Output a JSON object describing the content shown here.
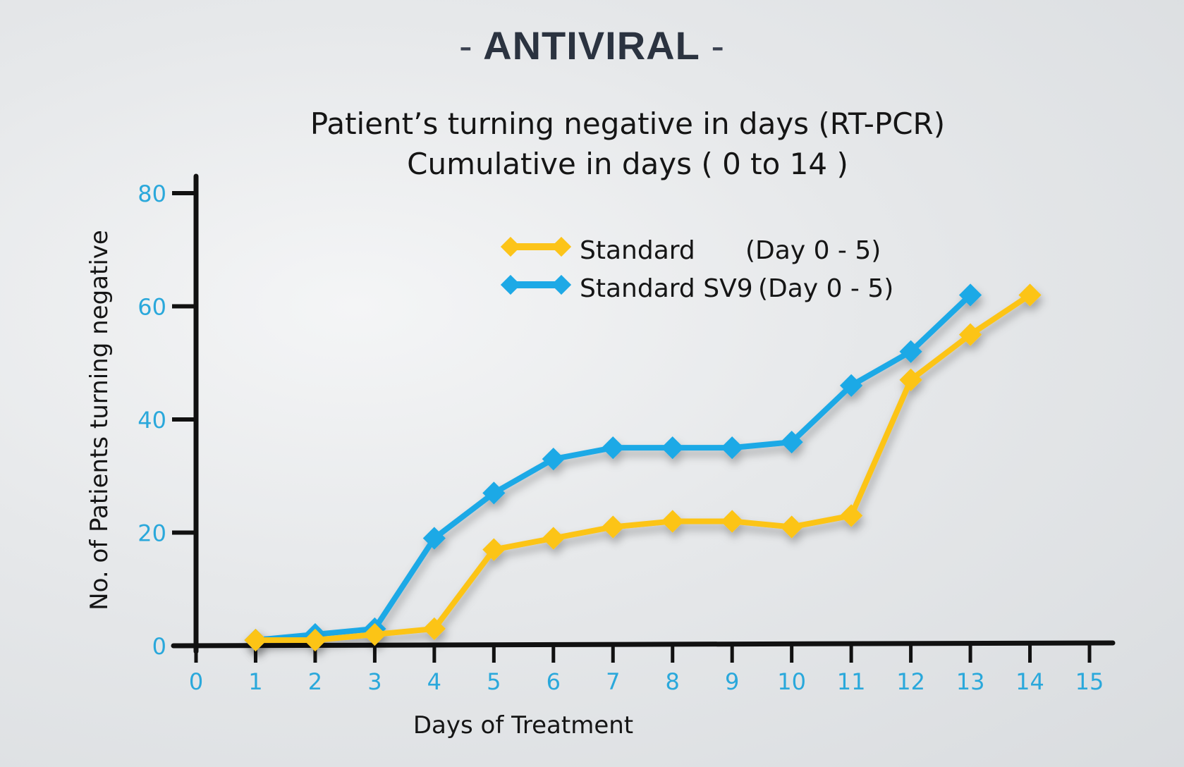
{
  "headline": {
    "text": "ANTIVIRAL",
    "dash": "-"
  },
  "colors": {
    "background": "#e3e5e7",
    "axis": "#111111",
    "tick_label": "#2aa8db",
    "series_standard": "#fcc419",
    "series_sv9": "#1ea9e6"
  },
  "chart_data": {
    "type": "line",
    "title": [
      "Patient’s turning negative in days (RT-PCR)",
      "Cumulative in days ( 0 to 14 )"
    ],
    "xlabel": "Days of Treatment",
    "ylabel": "No. of Patients turning negative",
    "xlim": [
      0,
      15
    ],
    "ylim": [
      0,
      80
    ],
    "xticks": [
      0,
      1,
      2,
      3,
      4,
      5,
      6,
      7,
      8,
      9,
      10,
      11,
      12,
      13,
      14,
      15
    ],
    "yticks": [
      0,
      20,
      40,
      60,
      80
    ],
    "grid": false,
    "legend_position": "top-center",
    "series": [
      {
        "name": "Standard",
        "legend_label": "Standard",
        "legend_note": "(Day 0 - 5)",
        "color": "#fcc419",
        "x": [
          1,
          2,
          3,
          4,
          5,
          6,
          7,
          8,
          9,
          10,
          11,
          12,
          13,
          14
        ],
        "y": [
          1,
          1,
          2,
          3,
          17,
          19,
          21,
          22,
          22,
          21,
          23,
          47,
          55,
          62
        ]
      },
      {
        "name": "Standard SV9",
        "legend_label": "Standard SV9",
        "legend_note": "(Day 0 - 5)",
        "color": "#1ea9e6",
        "x": [
          1,
          2,
          3,
          4,
          5,
          6,
          7,
          8,
          9,
          10,
          11,
          12,
          13
        ],
        "y": [
          1,
          2,
          3,
          19,
          27,
          33,
          35,
          35,
          35,
          36,
          46,
          52,
          62
        ]
      }
    ]
  }
}
